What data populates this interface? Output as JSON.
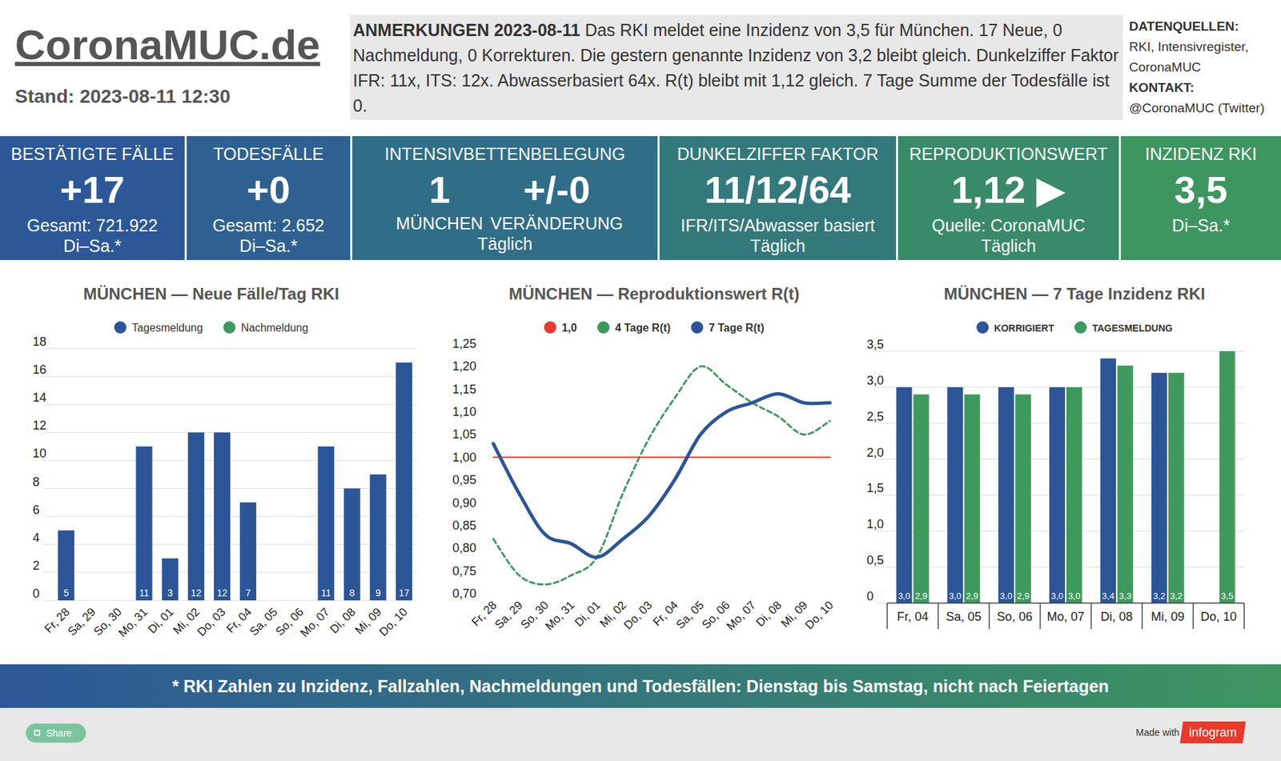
{
  "header": {
    "title": "CoronaMUC.de",
    "stand": "Stand: 2023-08-11 12:30"
  },
  "annotation": {
    "heading": "ANMERKUNGEN 2023-08-11",
    "text": "Das RKI meldet eine Inzidenz von 3,5 für München. 17 Neue, 0 Nachmeldung, 0 Korrekturen. Die gestern genannte Inzidenz von 3,2 bleibt gleich.  Dunkelziffer Faktor IFR: 11x, ITS: 12x. Abwasserbasiert 64x. R(t) bleibt mit 1,12 gleich. 7 Tage Summe der Todesfälle ist 0."
  },
  "sources": {
    "heading": "DATENQUELLEN:",
    "text": "RKI, Intensivregister, CoronaMUC",
    "contact_heading": "KONTAKT:",
    "contact": "@CoronaMUC (Twitter)"
  },
  "kpis": [
    {
      "title": "BESTÄTIGTE FÄLLE",
      "value": "+17",
      "lines": [
        "Gesamt: 721.922",
        "Di–Sa.*"
      ]
    },
    {
      "title": "TODESFÄLLE",
      "value": "+0",
      "lines": [
        "Gesamt: 2.652",
        "Di–Sa.*"
      ]
    },
    {
      "title": "INTENSIVBETTENBELEGUNG",
      "columns": [
        {
          "value": "1",
          "label": "MÜNCHEN"
        },
        {
          "value": "+/-0",
          "label": "VERÄNDERUNG"
        }
      ],
      "lines": [
        "Täglich"
      ]
    },
    {
      "title": "DUNKELZIFFER FAKTOR",
      "value": "11/12/64",
      "lines": [
        "IFR/ITS/Abwasser basiert",
        "Täglich"
      ]
    },
    {
      "title": "REPRODUKTIONSWERT",
      "value": "1,12 ▶",
      "lines": [
        "Quelle: CoronaMUC",
        "Täglich"
      ]
    },
    {
      "title": "INZIDENZ RKI",
      "value": "3,5",
      "lines": [
        "Di–Sa.*"
      ]
    }
  ],
  "chart_data": [
    {
      "type": "bar",
      "title": "MÜNCHEN — Neue Fälle/Tag RKI",
      "categories": [
        "Fr, 28",
        "Sa, 29",
        "So, 30",
        "Mo, 31",
        "Di, 01",
        "Mi, 02",
        "Do, 03",
        "Fr, 04",
        "Sa, 05",
        "So, 06",
        "Mo, 07",
        "Di, 08",
        "Mi, 09",
        "Do, 10"
      ],
      "series": [
        {
          "name": "Tagesmeldung",
          "color": "#2b5597",
          "values": [
            5,
            null,
            null,
            11,
            3,
            12,
            12,
            7,
            null,
            null,
            11,
            8,
            9,
            17
          ]
        },
        {
          "name": "Nachmeldung",
          "color": "#3e9a5c",
          "values": [
            null,
            null,
            null,
            null,
            null,
            null,
            null,
            null,
            null,
            null,
            null,
            null,
            null,
            null
          ]
        }
      ],
      "ylim": [
        0,
        18
      ],
      "yticks": [
        0,
        2,
        4,
        6,
        8,
        10,
        12,
        14,
        16,
        18
      ],
      "grid": true,
      "stacked": true,
      "data_labels": true,
      "legend": "top"
    },
    {
      "type": "line",
      "title": "MÜNCHEN — Reproduktionswert R(t)",
      "categories": [
        "Fr, 28",
        "Sa, 29",
        "So, 30",
        "Mo, 31",
        "Di, 01",
        "Mi, 02",
        "Do, 03",
        "Fr, 04",
        "Sa, 05",
        "So, 06",
        "Mo, 07",
        "Di, 08",
        "Mi, 09",
        "Do, 10"
      ],
      "series": [
        {
          "name": "1,0",
          "color": "#e53a2e",
          "line_style": "solid",
          "values": [
            1,
            1,
            1,
            1,
            1,
            1,
            1,
            1,
            1,
            1,
            1,
            1,
            1,
            1
          ]
        },
        {
          "name": "4 Tage R(t)",
          "color": "#3e9a5c",
          "line_style": "dashed",
          "values": [
            0.82,
            0.74,
            0.72,
            0.74,
            0.78,
            0.92,
            1.04,
            1.13,
            1.2,
            1.16,
            1.12,
            1.09,
            1.05,
            1.08
          ]
        },
        {
          "name": "7 Tage R(t)",
          "color": "#2b5597",
          "line_style": "solid",
          "values": [
            1.03,
            0.92,
            0.83,
            0.81,
            0.78,
            0.82,
            0.87,
            0.95,
            1.05,
            1.1,
            1.12,
            1.14,
            1.12,
            1.12
          ]
        }
      ],
      "ylim": [
        0.7,
        1.25
      ],
      "yticks": [
        {
          "value": 0.7,
          "label": "0,70"
        },
        {
          "value": 0.75,
          "label": "0,75"
        },
        {
          "value": 0.8,
          "label": "0,80"
        },
        {
          "value": 0.85,
          "label": "0,85"
        },
        {
          "value": 0.9,
          "label": "0,90"
        },
        {
          "value": 0.95,
          "label": "0,95"
        },
        {
          "value": 1,
          "label": "1,00"
        },
        {
          "value": 1.05,
          "label": "1,05"
        },
        {
          "value": 1.1,
          "label": "1,10"
        },
        {
          "value": 1.15,
          "label": "1,15"
        },
        {
          "value": 1.2,
          "label": "1,20"
        },
        {
          "value": 1.25,
          "label": "1,25"
        }
      ],
      "grid": false,
      "legend": "top"
    },
    {
      "type": "bar",
      "title": "MÜNCHEN — 7 Tage Inzidenz RKI",
      "categories": [
        "Fr, 04",
        "Sa, 05",
        "So, 06",
        "Mo, 07",
        "Di, 08",
        "Mi, 09",
        "Do, 10"
      ],
      "series": [
        {
          "name": "KORRIGIERT",
          "color": "#2b5597",
          "values": [
            3,
            3,
            3,
            3,
            3.4,
            3.2,
            null
          ],
          "value_labels": [
            "3,0",
            "3,0",
            "3,0",
            "3,0",
            "3,4",
            "3,2",
            null
          ]
        },
        {
          "name": "TAGESMELDUNG",
          "color": "#3e9a5c",
          "values": [
            2.9,
            2.9,
            2.9,
            3,
            3.3,
            3.2,
            3.5
          ],
          "value_labels": [
            "2,9",
            "2,9",
            "2,9",
            "3,0",
            "3,3",
            "3,2",
            "3,5"
          ]
        }
      ],
      "ylim": [
        0,
        3.5
      ],
      "yticks": [
        0,
        {
          "value": 0.5,
          "label": "0,5"
        },
        {
          "value": 1,
          "label": "1,0"
        },
        {
          "value": 1.5,
          "label": "1,5"
        },
        {
          "value": 2,
          "label": "2,0"
        },
        {
          "value": 2.5,
          "label": "2,5"
        },
        {
          "value": 3,
          "label": "3,0"
        },
        {
          "value": 3.5,
          "label": "3,5"
        }
      ],
      "grid": true,
      "data_labels": true,
      "legend": "top"
    }
  ],
  "footer": {
    "note": "* RKI Zahlen zu Inzidenz, Fallzahlen, Nachmeldungen und Todesfällen: Dienstag bis Samstag, nicht nach Feiertagen"
  },
  "bottom": {
    "share": "Share",
    "made_with": "Made with",
    "brand": "infogram"
  }
}
